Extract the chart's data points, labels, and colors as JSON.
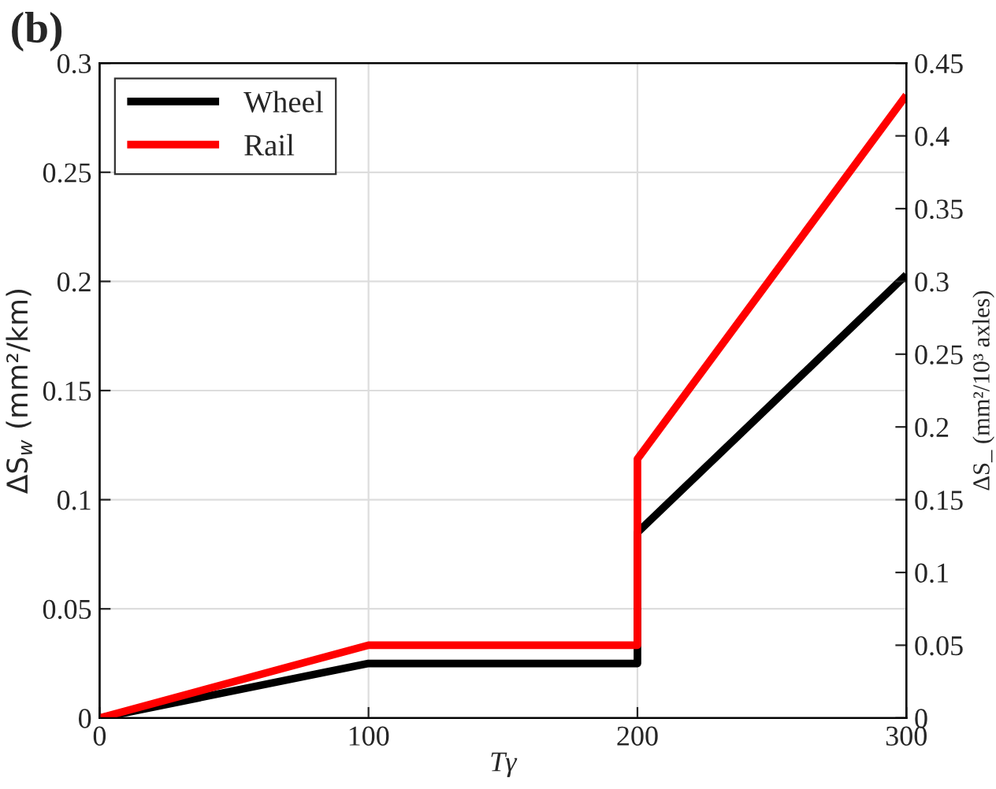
{
  "chart_data": {
    "type": "line",
    "title": "(b)",
    "xlabel": "Tγ",
    "ylabel": "ΔS$_{w}$ (mm²/km)",
    "y2label": "ΔS_ (mm²/10³ axles)",
    "series": [
      {
        "name": "Wheel",
        "color": "#000000",
        "x": [
          0,
          100,
          200,
          200,
          300
        ],
        "values": [
          0,
          0.025,
          0.025,
          0.085,
          0.203
        ]
      },
      {
        "name": "Rail",
        "color": "#ff0000",
        "axis": "y2",
        "x": [
          0,
          100,
          200,
          200,
          300
        ],
        "values": [
          0,
          0.05,
          0.05,
          0.178,
          0.428
        ]
      }
    ],
    "xlim": [
      0,
      300
    ],
    "xticks": [
      0,
      100,
      200,
      300
    ],
    "ylim": [
      0,
      0.3
    ],
    "yticks": [
      0,
      0.05,
      0.1,
      0.15,
      0.2,
      0.25,
      0.3
    ],
    "y2lim": [
      0,
      0.45
    ],
    "y2ticks": [
      0,
      0.05,
      0.1,
      0.15,
      0.2,
      0.25,
      0.3,
      0.35,
      0.4,
      0.45
    ],
    "grid": true,
    "legend": "top left",
    "line_style": "solid",
    "marker": "none"
  }
}
